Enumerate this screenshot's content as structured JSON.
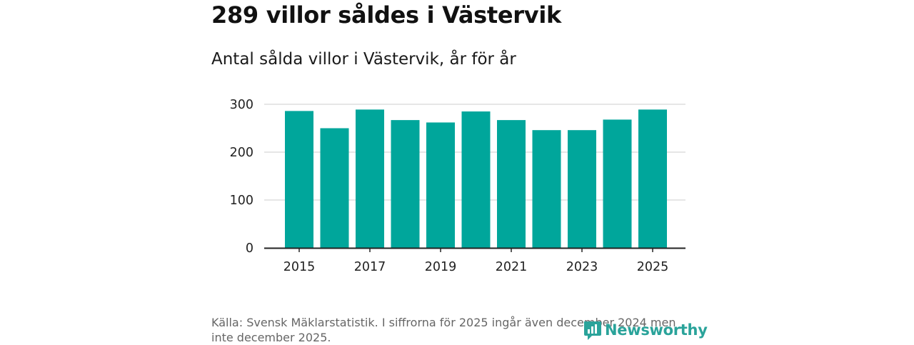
{
  "title": "289 villor såldes i Västervik",
  "subtitle": "Antal sålda villor i Västervik, år för år",
  "source": "Källa: Svensk Mäklarstatistik. I siffrorna för 2025 ingår även december 2024 men inte december 2025.",
  "brand": "Newsworthy",
  "colors": {
    "bar": "#00a69b",
    "grid": "#dddddd",
    "axis": "#222222",
    "brand": "#2aa39a"
  },
  "chart_data": {
    "type": "bar",
    "title": "Antal sålda villor i Västervik, år för år",
    "xlabel": "",
    "ylabel": "",
    "categories": [
      "2015",
      "2016",
      "2017",
      "2018",
      "2019",
      "2020",
      "2021",
      "2022",
      "2023",
      "2024",
      "2025"
    ],
    "values": [
      286,
      250,
      289,
      267,
      262,
      285,
      267,
      246,
      246,
      268,
      289
    ],
    "ylim": [
      0,
      300
    ],
    "yticks": [
      0,
      100,
      200,
      300
    ],
    "xtick_labels": [
      "2015",
      "2017",
      "2019",
      "2021",
      "2023",
      "2025"
    ],
    "grid": true
  }
}
